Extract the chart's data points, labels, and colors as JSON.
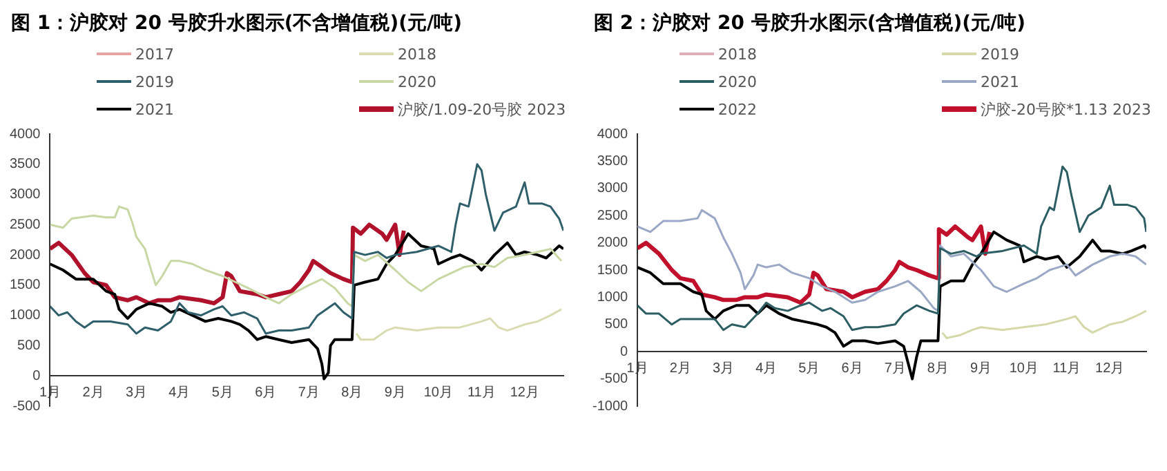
{
  "chart_data": [
    {
      "type": "line",
      "title": "图 1：沪胶对 20 号胶升水图示(不含增值税)(元/吨)",
      "legend": "top",
      "grid": false,
      "xlim": [
        1,
        12.9
      ],
      "xticks": [
        {
          "value": 1,
          "label": "1月"
        },
        {
          "value": 2,
          "label": "2月"
        },
        {
          "value": 3,
          "label": "3月"
        },
        {
          "value": 4,
          "label": "4月"
        },
        {
          "value": 5,
          "label": "5月"
        },
        {
          "value": 6,
          "label": "6月"
        },
        {
          "value": 7,
          "label": "7月"
        },
        {
          "value": 8,
          "label": "8月"
        },
        {
          "value": 9,
          "label": "9月"
        },
        {
          "value": 10,
          "label": "10月"
        },
        {
          "value": 11,
          "label": "11月"
        },
        {
          "value": 12,
          "label": "12月"
        }
      ],
      "ylim": [
        -500,
        4000
      ],
      "yticks": [
        -500,
        0,
        500,
        1000,
        1500,
        2000,
        2500,
        3000,
        3500,
        4000
      ],
      "series": [
        {
          "name": "2017",
          "color": "#e8a3a3"
        },
        {
          "name": "2018",
          "color": "#d9dbb0",
          "x": [
            8.1,
            8.2,
            8.5,
            8.8,
            9.0,
            9.5,
            10.0,
            10.5,
            11.0,
            11.2,
            11.4,
            11.6,
            12.0,
            12.3,
            12.6,
            12.85
          ],
          "values": [
            700,
            600,
            600,
            750,
            800,
            750,
            800,
            800,
            900,
            950,
            800,
            750,
            850,
            900,
            1000,
            1100
          ]
        },
        {
          "name": "2019",
          "color": "#2f5f6a",
          "x": [
            1.0,
            1.2,
            1.4,
            1.6,
            1.8,
            2.0,
            2.4,
            2.8,
            3.0,
            3.2,
            3.5,
            3.8,
            4.0,
            4.2,
            4.5,
            4.8,
            5.0,
            5.2,
            5.5,
            5.8,
            6.0,
            6.3,
            6.6,
            7.0,
            7.2,
            7.4,
            7.6,
            7.8,
            8.0,
            8.05,
            8.3,
            8.6,
            8.8,
            9.0,
            9.5,
            10.0,
            10.3,
            10.4,
            10.5,
            10.7,
            10.9,
            11.0,
            11.1,
            11.3,
            11.5,
            11.8,
            12.0,
            12.1,
            12.4,
            12.6,
            12.8,
            12.9
          ],
          "values": [
            1150,
            1000,
            1050,
            900,
            800,
            900,
            900,
            850,
            700,
            800,
            750,
            900,
            1200,
            1050,
            1000,
            1100,
            1150,
            1000,
            1050,
            950,
            700,
            750,
            750,
            800,
            1000,
            1100,
            1200,
            1050,
            950,
            2050,
            2000,
            2050,
            1950,
            2000,
            2050,
            2150,
            2050,
            2500,
            2850,
            2800,
            3500,
            3400,
            3000,
            2400,
            2700,
            2800,
            3200,
            2850,
            2850,
            2800,
            2600,
            2400
          ]
        },
        {
          "name": "2020",
          "color": "#c8d7a3",
          "x": [
            1.0,
            1.3,
            1.5,
            2.0,
            2.3,
            2.5,
            2.6,
            2.8,
            2.9,
            3.0,
            3.2,
            3.3,
            3.45,
            3.6,
            3.8,
            4.0,
            4.3,
            4.6,
            5.0,
            5.3,
            5.6,
            6.0,
            6.3,
            6.6,
            7.0,
            7.3,
            7.6,
            7.9,
            8.0,
            8.05,
            8.3,
            8.6,
            9.0,
            9.3,
            9.6,
            10.0,
            10.3,
            10.6,
            11.0,
            11.3,
            11.6,
            12.0,
            12.3,
            12.6,
            12.85
          ],
          "values": [
            2500,
            2450,
            2600,
            2650,
            2620,
            2620,
            2800,
            2750,
            2550,
            2300,
            2100,
            1850,
            1500,
            1650,
            1900,
            1900,
            1850,
            1750,
            1650,
            1550,
            1450,
            1300,
            1200,
            1350,
            1500,
            1600,
            1450,
            1200,
            1150,
            2000,
            1900,
            2000,
            1750,
            1550,
            1400,
            1600,
            1700,
            1800,
            1850,
            1800,
            1950,
            2000,
            2050,
            2100,
            1900
          ]
        },
        {
          "name": "2021",
          "color": "#000000",
          "x": [
            1.0,
            1.3,
            1.6,
            2.0,
            2.3,
            2.5,
            2.6,
            2.8,
            3.0,
            3.3,
            3.6,
            3.8,
            4.0,
            4.3,
            4.6,
            4.9,
            5.2,
            5.4,
            5.6,
            5.8,
            6.0,
            6.3,
            6.6,
            7.0,
            7.2,
            7.3,
            7.35,
            7.45,
            7.5,
            7.6,
            7.9,
            8.0,
            8.05,
            8.3,
            8.6,
            8.8,
            9.0,
            9.3,
            9.6,
            9.9,
            10.0,
            10.3,
            10.5,
            10.8,
            11.0,
            11.3,
            11.6,
            11.8,
            12.0,
            12.3,
            12.5,
            12.8,
            12.9
          ],
          "values": [
            1850,
            1750,
            1600,
            1600,
            1400,
            1350,
            1100,
            950,
            1100,
            1200,
            1150,
            1050,
            1100,
            1000,
            900,
            950,
            900,
            850,
            750,
            600,
            650,
            600,
            550,
            600,
            450,
            200,
            -50,
            50,
            500,
            600,
            600,
            600,
            1500,
            1550,
            1600,
            1850,
            2000,
            2350,
            2150,
            2100,
            1850,
            1950,
            2000,
            1900,
            1750,
            2000,
            2200,
            2000,
            2050,
            2000,
            1950,
            2150,
            2100
          ]
        },
        {
          "name": "沪胶/1.09-20号胶 2023",
          "color": "#b0122c",
          "x": [
            1.0,
            1.2,
            1.5,
            1.8,
            2.0,
            2.3,
            2.5,
            2.8,
            3.0,
            3.3,
            3.5,
            3.8,
            4.0,
            4.5,
            4.8,
            5.0,
            5.1,
            5.2,
            5.4,
            5.8,
            6.0,
            6.3,
            6.6,
            6.8,
            7.0,
            7.1,
            7.3,
            7.5,
            7.8,
            8.0,
            8.02,
            8.2,
            8.4,
            8.7,
            8.8,
            9.0,
            9.1,
            9.2
          ],
          "values": [
            2100,
            2200,
            2000,
            1700,
            1550,
            1500,
            1300,
            1250,
            1300,
            1200,
            1250,
            1250,
            1300,
            1250,
            1200,
            1300,
            1700,
            1650,
            1400,
            1350,
            1300,
            1350,
            1400,
            1550,
            1750,
            1900,
            1800,
            1700,
            1600,
            1550,
            2450,
            2350,
            2500,
            2350,
            2250,
            2500,
            2000,
            2400
          ]
        }
      ]
    },
    {
      "type": "line",
      "title": "图 2：沪胶对 20 号胶升水图示(含增值税)(元/吨)",
      "legend": "top",
      "grid": false,
      "xlim": [
        1,
        12.85
      ],
      "xticks": [
        {
          "value": 1,
          "label": "1月"
        },
        {
          "value": 2,
          "label": "2月"
        },
        {
          "value": 3,
          "label": "3月"
        },
        {
          "value": 4,
          "label": "4月"
        },
        {
          "value": 5,
          "label": "5月"
        },
        {
          "value": 6,
          "label": "6月"
        },
        {
          "value": 7,
          "label": "7月"
        },
        {
          "value": 8,
          "label": "8月"
        },
        {
          "value": 9,
          "label": "9月"
        },
        {
          "value": 10,
          "label": "10月"
        },
        {
          "value": 11,
          "label": "11月"
        },
        {
          "value": 12,
          "label": "12月"
        }
      ],
      "ylim": [
        -1000,
        4000
      ],
      "yticks": [
        -1000,
        -500,
        0,
        500,
        1000,
        1500,
        2000,
        2500,
        3000,
        3500,
        4000
      ],
      "series": [
        {
          "name": "2018",
          "color": "#e0b0b8"
        },
        {
          "name": "2019",
          "color": "#d5d8a8",
          "x": [
            8.1,
            8.2,
            8.5,
            8.8,
            9.0,
            9.5,
            10.0,
            10.5,
            11.0,
            11.2,
            11.4,
            11.6,
            12.0,
            12.3,
            12.6,
            12.85
          ],
          "values": [
            350,
            250,
            300,
            400,
            450,
            400,
            450,
            500,
            600,
            650,
            450,
            350,
            500,
            550,
            650,
            750
          ]
        },
        {
          "name": "2020",
          "color": "#2b5d63",
          "x": [
            1.0,
            1.2,
            1.5,
            1.8,
            2.0,
            2.5,
            2.8,
            3.0,
            3.2,
            3.5,
            3.8,
            4.0,
            4.2,
            4.5,
            4.8,
            5.0,
            5.3,
            5.5,
            5.8,
            6.0,
            6.3,
            6.6,
            7.0,
            7.2,
            7.5,
            7.8,
            8.0,
            8.05,
            8.3,
            8.6,
            8.9,
            9.0,
            9.5,
            10.0,
            10.3,
            10.4,
            10.6,
            10.7,
            10.9,
            11.0,
            11.1,
            11.3,
            11.5,
            11.8,
            12.0,
            12.1,
            12.4,
            12.6,
            12.8,
            12.85
          ],
          "values": [
            850,
            700,
            700,
            500,
            600,
            600,
            600,
            400,
            500,
            450,
            700,
            900,
            800,
            750,
            850,
            900,
            750,
            800,
            650,
            400,
            450,
            450,
            500,
            700,
            850,
            750,
            700,
            1900,
            1800,
            1850,
            1750,
            1800,
            1850,
            1950,
            1800,
            2300,
            2650,
            2600,
            3400,
            3300,
            2900,
            2200,
            2500,
            2650,
            3050,
            2700,
            2700,
            2650,
            2450,
            2200
          ]
        },
        {
          "name": "2021",
          "color": "#9aa8c6",
          "x": [
            1.0,
            1.3,
            1.6,
            2.0,
            2.4,
            2.5,
            2.8,
            3.0,
            3.2,
            3.4,
            3.5,
            3.7,
            3.8,
            4.0,
            4.3,
            4.6,
            5.0,
            5.3,
            5.6,
            6.0,
            6.3,
            6.6,
            7.0,
            7.3,
            7.6,
            7.9,
            8.0,
            8.05,
            8.3,
            8.6,
            9.0,
            9.3,
            9.6,
            10.0,
            10.3,
            10.6,
            11.0,
            11.2,
            11.6,
            12.0,
            12.3,
            12.6,
            12.85
          ],
          "values": [
            2300,
            2200,
            2400,
            2400,
            2450,
            2600,
            2450,
            2100,
            1800,
            1450,
            1150,
            1400,
            1600,
            1550,
            1600,
            1450,
            1350,
            1200,
            1100,
            900,
            950,
            1100,
            1200,
            1300,
            1100,
            800,
            750,
            1950,
            1750,
            1800,
            1500,
            1200,
            1100,
            1250,
            1350,
            1500,
            1600,
            1400,
            1600,
            1750,
            1800,
            1750,
            1600
          ]
        },
        {
          "name": "2022",
          "color": "#000000",
          "x": [
            1.0,
            1.3,
            1.6,
            2.0,
            2.3,
            2.5,
            2.6,
            2.8,
            3.0,
            3.3,
            3.6,
            3.8,
            4.0,
            4.3,
            4.6,
            4.9,
            5.2,
            5.4,
            5.6,
            5.8,
            6.0,
            6.3,
            6.6,
            7.0,
            7.2,
            7.3,
            7.4,
            7.5,
            7.6,
            7.9,
            8.0,
            8.05,
            8.3,
            8.6,
            8.8,
            9.0,
            9.3,
            9.6,
            9.9,
            10.0,
            10.3,
            10.5,
            10.8,
            11.0,
            11.3,
            11.6,
            11.8,
            12.0,
            12.3,
            12.5,
            12.8,
            12.85
          ],
          "values": [
            1550,
            1450,
            1250,
            1250,
            1100,
            1050,
            750,
            600,
            750,
            850,
            850,
            700,
            850,
            700,
            600,
            550,
            500,
            450,
            350,
            100,
            200,
            200,
            150,
            200,
            100,
            -200,
            -500,
            -100,
            200,
            200,
            200,
            1200,
            1300,
            1300,
            1600,
            1800,
            2200,
            2050,
            1950,
            1650,
            1750,
            1700,
            1750,
            1550,
            1750,
            2050,
            1850,
            1850,
            1800,
            1850,
            1950,
            1900
          ]
        },
        {
          "name": "沪胶-20号胶*1.13 2023",
          "color": "#c0102c",
          "x": [
            1.0,
            1.2,
            1.5,
            1.8,
            2.0,
            2.3,
            2.5,
            2.8,
            3.0,
            3.3,
            3.5,
            3.8,
            4.0,
            4.5,
            4.8,
            5.0,
            5.1,
            5.2,
            5.4,
            5.8,
            6.0,
            6.3,
            6.6,
            6.8,
            7.0,
            7.1,
            7.3,
            7.5,
            7.8,
            8.0,
            8.02,
            8.2,
            8.4,
            8.7,
            8.8,
            9.0,
            9.1,
            9.2
          ],
          "values": [
            1900,
            2000,
            1800,
            1500,
            1350,
            1300,
            1050,
            1000,
            950,
            950,
            1000,
            1000,
            1050,
            1000,
            900,
            1050,
            1450,
            1400,
            1150,
            1100,
            1000,
            1100,
            1150,
            1300,
            1500,
            1650,
            1550,
            1500,
            1400,
            1350,
            2250,
            2150,
            2300,
            2100,
            2050,
            2300,
            1800,
            2200
          ]
        }
      ]
    }
  ]
}
